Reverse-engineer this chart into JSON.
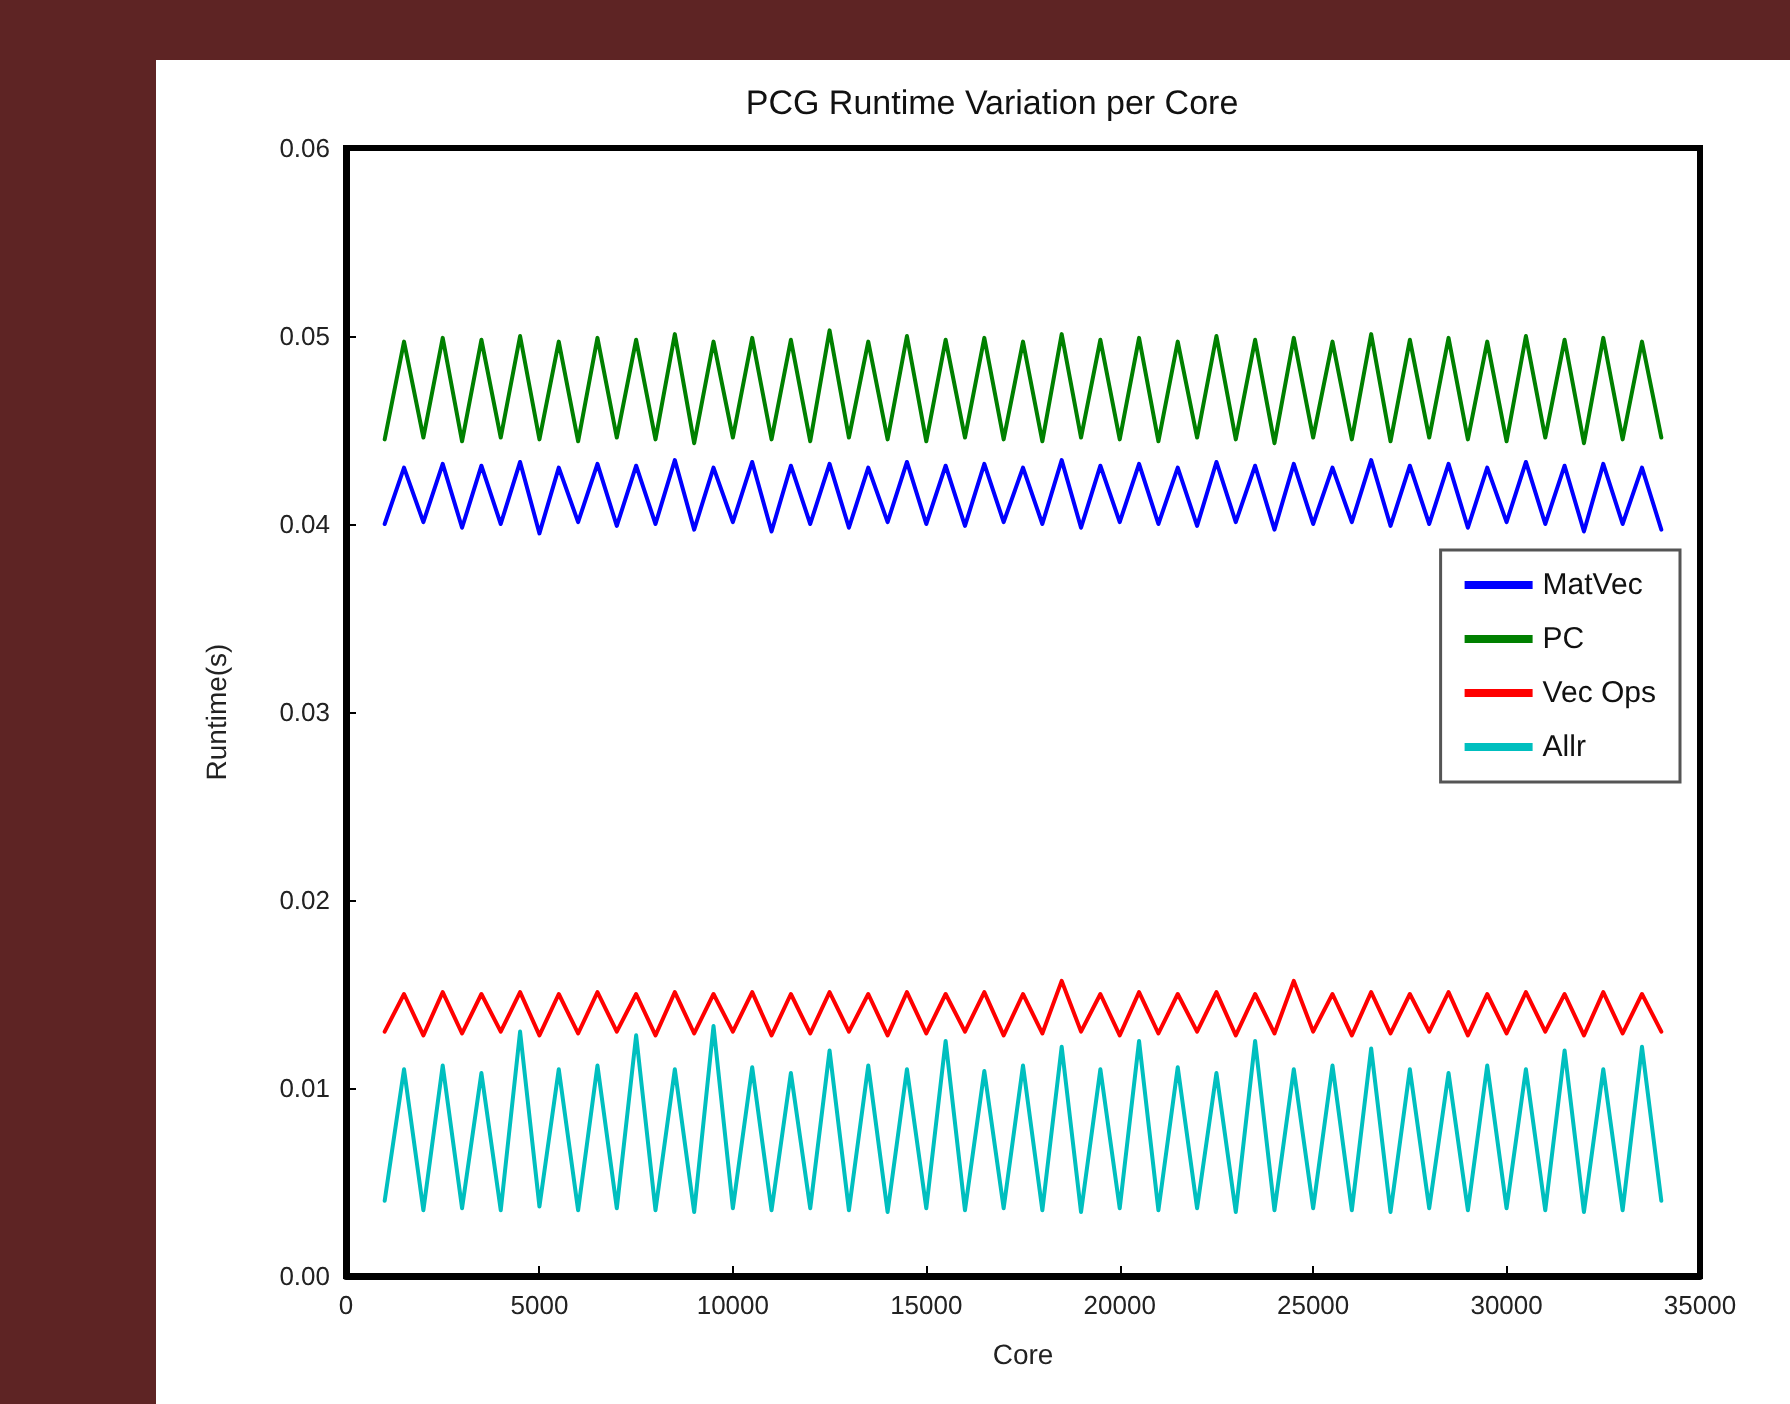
{
  "chart_data": {
    "type": "line",
    "title": "PCG Runtime Variation per Core",
    "xlabel": "Core",
    "ylabel": "Runtime(s)",
    "x": [
      1000,
      1500,
      2000,
      2500,
      3000,
      3500,
      4000,
      4500,
      5000,
      5500,
      6000,
      6500,
      7000,
      7500,
      8000,
      8500,
      9000,
      9500,
      10000,
      10500,
      11000,
      11500,
      12000,
      12500,
      13000,
      13500,
      14000,
      14500,
      15000,
      15500,
      16000,
      16500,
      17000,
      17500,
      18000,
      18500,
      19000,
      19500,
      20000,
      20500,
      21000,
      21500,
      22000,
      22500,
      23000,
      23500,
      24000,
      24500,
      25000,
      25500,
      26000,
      26500,
      27000,
      27500,
      28000,
      28500,
      29000,
      29500,
      30000,
      30500,
      31000,
      31500,
      32000,
      32500,
      33000,
      33500,
      34000
    ],
    "series": [
      {
        "name": "MatVec",
        "color": "#0000ff",
        "values": [
          0.04,
          0.043,
          0.0401,
          0.0432,
          0.0398,
          0.0431,
          0.04,
          0.0433,
          0.0395,
          0.043,
          0.0401,
          0.0432,
          0.0399,
          0.0431,
          0.04,
          0.0434,
          0.0397,
          0.043,
          0.0401,
          0.0433,
          0.0396,
          0.0431,
          0.04,
          0.0432,
          0.0398,
          0.043,
          0.0401,
          0.0433,
          0.04,
          0.0431,
          0.0399,
          0.0432,
          0.0401,
          0.043,
          0.04,
          0.0434,
          0.0398,
          0.0431,
          0.0401,
          0.0432,
          0.04,
          0.043,
          0.0399,
          0.0433,
          0.0401,
          0.0431,
          0.0397,
          0.0432,
          0.04,
          0.043,
          0.0401,
          0.0434,
          0.0399,
          0.0431,
          0.04,
          0.0432,
          0.0398,
          0.043,
          0.0401,
          0.0433,
          0.04,
          0.0431,
          0.0396,
          0.0432,
          0.04,
          0.043,
          0.0397
        ]
      },
      {
        "name": "PC",
        "color": "#008000",
        "values": [
          0.0445,
          0.0497,
          0.0446,
          0.0499,
          0.0444,
          0.0498,
          0.0446,
          0.05,
          0.0445,
          0.0497,
          0.0444,
          0.0499,
          0.0446,
          0.0498,
          0.0445,
          0.0501,
          0.0443,
          0.0497,
          0.0446,
          0.0499,
          0.0445,
          0.0498,
          0.0444,
          0.0503,
          0.0446,
          0.0497,
          0.0445,
          0.05,
          0.0444,
          0.0498,
          0.0446,
          0.0499,
          0.0445,
          0.0497,
          0.0444,
          0.0501,
          0.0446,
          0.0498,
          0.0445,
          0.0499,
          0.0444,
          0.0497,
          0.0446,
          0.05,
          0.0445,
          0.0498,
          0.0443,
          0.0499,
          0.0446,
          0.0497,
          0.0445,
          0.0501,
          0.0444,
          0.0498,
          0.0446,
          0.0499,
          0.0445,
          0.0497,
          0.0444,
          0.05,
          0.0446,
          0.0498,
          0.0443,
          0.0499,
          0.0445,
          0.0497,
          0.0446
        ]
      },
      {
        "name": "Vec Ops",
        "color": "#ff0000",
        "values": [
          0.013,
          0.015,
          0.0128,
          0.0151,
          0.0129,
          0.015,
          0.013,
          0.0151,
          0.0128,
          0.015,
          0.0129,
          0.0151,
          0.013,
          0.015,
          0.0128,
          0.0151,
          0.0129,
          0.015,
          0.013,
          0.0151,
          0.0128,
          0.015,
          0.0129,
          0.0151,
          0.013,
          0.015,
          0.0128,
          0.0151,
          0.0129,
          0.015,
          0.013,
          0.0151,
          0.0128,
          0.015,
          0.0129,
          0.0157,
          0.013,
          0.015,
          0.0128,
          0.0151,
          0.0129,
          0.015,
          0.013,
          0.0151,
          0.0128,
          0.015,
          0.0129,
          0.0157,
          0.013,
          0.015,
          0.0128,
          0.0151,
          0.0129,
          0.015,
          0.013,
          0.0151,
          0.0128,
          0.015,
          0.0129,
          0.0151,
          0.013,
          0.015,
          0.0128,
          0.0151,
          0.0129,
          0.015,
          0.013
        ]
      },
      {
        "name": "Allr",
        "color": "#00bfbf",
        "values": [
          0.004,
          0.011,
          0.0035,
          0.0112,
          0.0036,
          0.0108,
          0.0035,
          0.013,
          0.0037,
          0.011,
          0.0035,
          0.0112,
          0.0036,
          0.0128,
          0.0035,
          0.011,
          0.0034,
          0.0133,
          0.0036,
          0.0111,
          0.0035,
          0.0108,
          0.0036,
          0.012,
          0.0035,
          0.0112,
          0.0034,
          0.011,
          0.0036,
          0.0125,
          0.0035,
          0.0109,
          0.0036,
          0.0112,
          0.0035,
          0.0122,
          0.0034,
          0.011,
          0.0036,
          0.0125,
          0.0035,
          0.0111,
          0.0036,
          0.0108,
          0.0034,
          0.0125,
          0.0035,
          0.011,
          0.0036,
          0.0112,
          0.0035,
          0.0121,
          0.0034,
          0.011,
          0.0036,
          0.0108,
          0.0035,
          0.0112,
          0.0036,
          0.011,
          0.0035,
          0.012,
          0.0034,
          0.011,
          0.0035,
          0.0122,
          0.004
        ]
      }
    ],
    "xlim": [
      0,
      35000
    ],
    "xticks": [
      0,
      5000,
      10000,
      15000,
      20000,
      25000,
      30000,
      35000
    ],
    "ylim": [
      0,
      0.06
    ],
    "yticks": [
      {
        "value": 0,
        "label": "0.00"
      },
      0.01,
      0.02,
      0.03,
      0.04,
      0.05,
      0.06
    ],
    "grid": false,
    "legend": "right",
    "marker": "none",
    "line_style": "solid"
  }
}
